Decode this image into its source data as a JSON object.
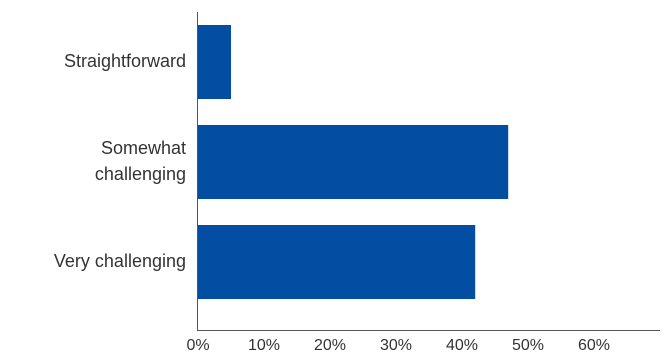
{
  "chart_data": {
    "type": "bar",
    "orientation": "horizontal",
    "categories": [
      [
        "Straightforward"
      ],
      [
        "Somewhat",
        "challenging"
      ],
      [
        "Very challenging"
      ]
    ],
    "values": [
      5,
      47,
      42
    ],
    "unit": "%",
    "xlim": [
      0,
      65
    ],
    "xticks": [
      0,
      10,
      20,
      30,
      40,
      50,
      60
    ],
    "tick_labels": [
      "0%",
      "10%",
      "20%",
      "30%",
      "40%",
      "50%",
      "60%"
    ],
    "bar_color": "#034EA2",
    "grid": false,
    "legend": "none"
  }
}
